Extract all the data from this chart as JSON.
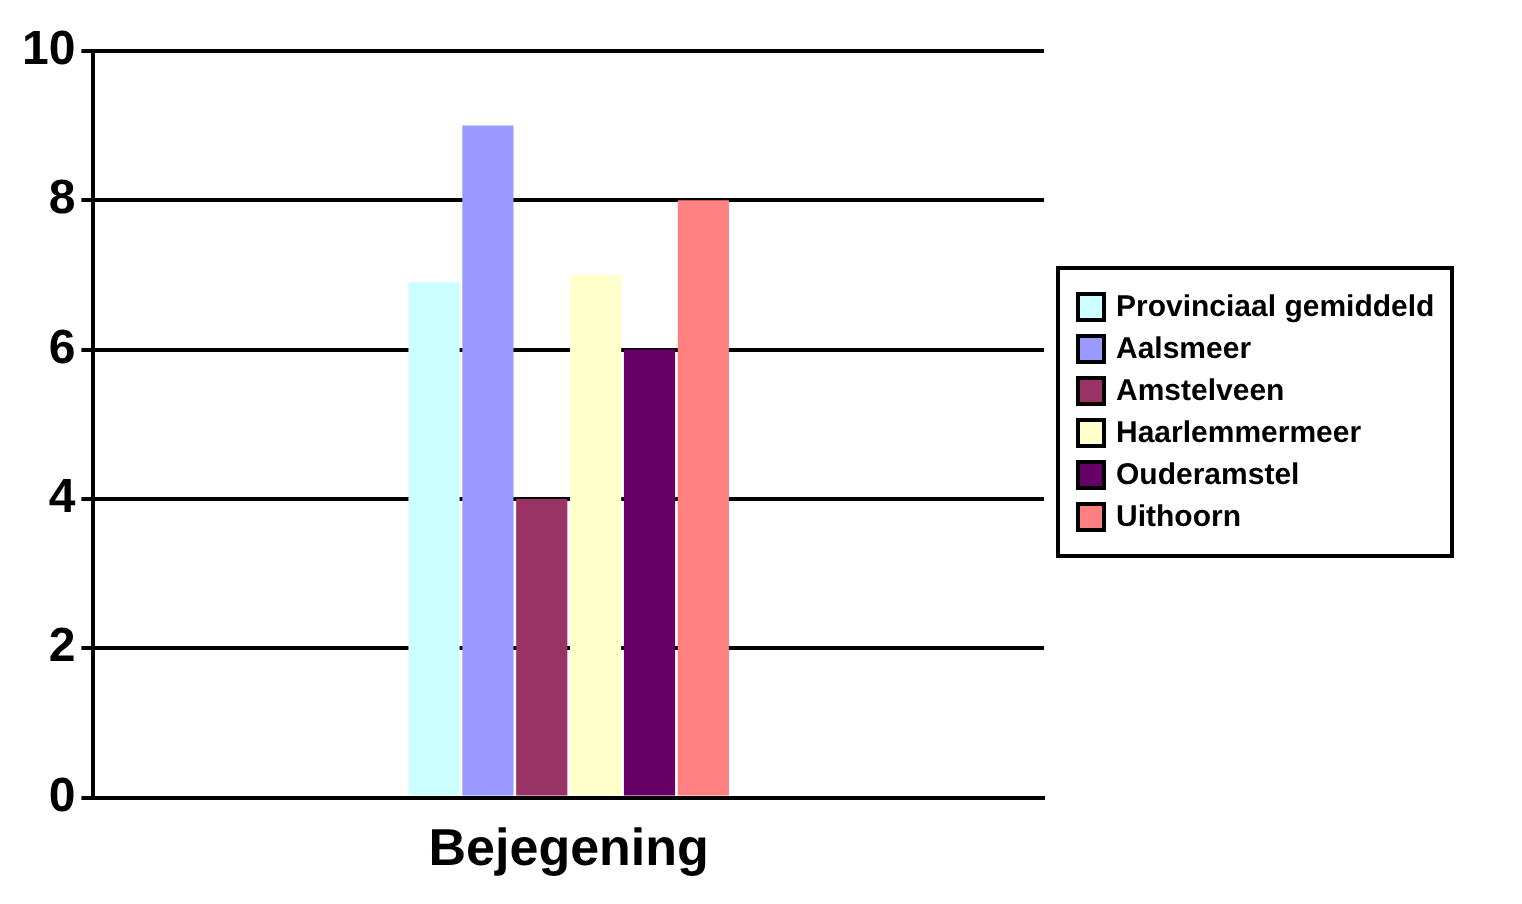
{
  "chart_data": {
    "type": "bar",
    "categories": [
      "Bejegening"
    ],
    "series": [
      {
        "name": "Provinciaal gemiddeld",
        "color": "#ccffff",
        "values": [
          6.9
        ]
      },
      {
        "name": "Aalsmeer",
        "color": "#9999ff",
        "values": [
          9
        ]
      },
      {
        "name": "Amstelveen",
        "color": "#993366",
        "values": [
          4
        ]
      },
      {
        "name": "Haarlemmermeer",
        "color": "#ffffcc",
        "values": [
          7
        ]
      },
      {
        "name": "Ouderamstel",
        "color": "#660066",
        "values": [
          6
        ]
      },
      {
        "name": "Uithoorn",
        "color": "#ff8080",
        "values": [
          8
        ]
      }
    ],
    "ylim": [
      0,
      10
    ],
    "yticks": [
      0,
      2,
      4,
      6,
      8,
      10
    ],
    "grid": "y",
    "legend": "right"
  }
}
